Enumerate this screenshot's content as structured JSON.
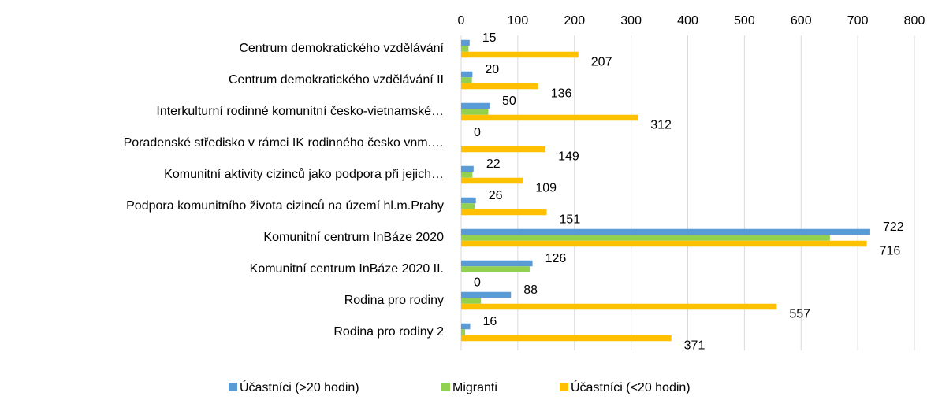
{
  "chart_data": {
    "type": "hbar",
    "categories": [
      "Centrum demokratického vzdělávání",
      "Centrum demokratického vzdělávání II",
      "Interkulturní rodinné komunitní česko-vietnamské…",
      "Poradenské středisko v rámci IK rodinného česko vnm.…",
      "Komunitní aktivity cizinců jako podpora při jejich…",
      "Podpora komunitního života cizinců na území hl.m.Prahy",
      "Komunitní centrum InBáze 2020",
      "Komunitní centrum InBáze 2020 II.",
      "Rodina pro rodiny",
      "Rodina pro rodiny 2"
    ],
    "series": [
      {
        "name": "Účastníci (>20 hodin)",
        "color": "#5b9bd5",
        "show_labels": true,
        "values": [
          15,
          20,
          50,
          0,
          22,
          26,
          722,
          126,
          88,
          16
        ]
      },
      {
        "name": "Migranti",
        "color": "#92d050",
        "show_labels": false,
        "values": [
          13,
          19,
          48,
          0,
          20,
          24,
          651,
          121,
          35,
          7
        ]
      },
      {
        "name": "Účastníci (<20 hodin)",
        "color": "#ffc000",
        "show_labels": true,
        "values": [
          207,
          136,
          312,
          149,
          109,
          151,
          716,
          0,
          557,
          371
        ]
      }
    ],
    "xlim": [
      0,
      800
    ],
    "xticks": [
      0,
      100,
      200,
      300,
      400,
      500,
      600,
      700,
      800
    ],
    "grid": true,
    "legend": "bottom"
  }
}
